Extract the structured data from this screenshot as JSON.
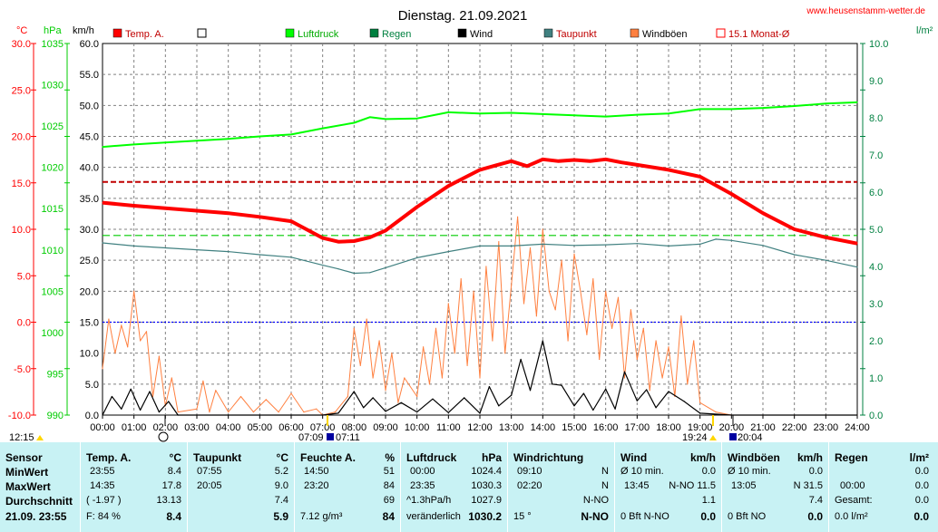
{
  "chart_data": {
    "type": "line",
    "title": "Dienstag. 21.09.2021",
    "website": "www.heusenstamm-wetter.de",
    "unit_labels": {
      "temp": "°C",
      "pressure": "hPa",
      "wind": "km/h",
      "rain": "l/m²"
    },
    "axes": {
      "temp_ticks": [
        "30.0",
        "25.0",
        "20.0",
        "15.0",
        "10.0",
        "5.0",
        "0.0",
        "-5.0",
        "-10.0"
      ],
      "pressure_ticks": [
        "1035",
        "1030",
        "1025",
        "1020",
        "1015",
        "1010",
        "1005",
        "1000",
        "995",
        "990"
      ],
      "wind_ticks": [
        "60.0",
        "55.0",
        "50.0",
        "45.0",
        "40.0",
        "35.0",
        "30.0",
        "25.0",
        "20.0",
        "15.0",
        "10.0",
        "5.0",
        "0.0"
      ],
      "rain_ticks": [
        "10.0",
        "9.0",
        "8.0",
        "7.0",
        "6.0",
        "5.0",
        "4.0",
        "3.0",
        "2.0",
        "1.0",
        "0.0"
      ],
      "x_ticks": [
        "00:00",
        "01:00",
        "02:00",
        "03:00",
        "04:00",
        "05:00",
        "06:00",
        "07:00",
        "08:00",
        "09:00",
        "10:00",
        "11:00",
        "12:00",
        "13:00",
        "14:00",
        "15:00",
        "16:00",
        "17:00",
        "18:00",
        "19:00",
        "20:00",
        "21:00",
        "22:00",
        "23:00",
        "24:00"
      ],
      "temp_range": [
        -10,
        30
      ],
      "wind_range": [
        0,
        60
      ],
      "rain_range": [
        0,
        10
      ],
      "grid": true
    },
    "legend": [
      {
        "name": "Temp. A.",
        "color": "#ff0000"
      },
      {
        "name": "",
        "color": "#ffffff"
      },
      {
        "name": "Luftdruck",
        "color": "#00ff00"
      },
      {
        "name": "Regen",
        "color": "#008040"
      },
      {
        "name": "Wind",
        "color": "#000000"
      },
      {
        "name": "Taupunkt",
        "color": "#408080"
      },
      {
        "name": "Windböen",
        "color": "#ff8040"
      },
      {
        "name": "15.1 Monat-Ø",
        "color": "#ff0000"
      }
    ],
    "monthly_avg_temp": 15.1,
    "dew_line_value": 29.0,
    "wind_blue_line_value": 15.0,
    "time_markers": [
      "12:15",
      "07:09",
      "07:11",
      "19:24",
      "20:04"
    ],
    "series": [
      {
        "name": "Temp. A.",
        "axis": "wind",
        "color": "#ff0000",
        "x": [
          0,
          1,
          2,
          3,
          4,
          5,
          6,
          7,
          7.5,
          8,
          8.5,
          9,
          10,
          11,
          12,
          12.5,
          13,
          13.5,
          14,
          14.5,
          15,
          15.5,
          16,
          16.5,
          17,
          18,
          19,
          20,
          21,
          22,
          23,
          24
        ],
        "y": [
          34.3,
          33.8,
          33.4,
          33.0,
          32.6,
          32.0,
          31.3,
          28.6,
          28.0,
          28.1,
          28.7,
          29.8,
          33.6,
          37.0,
          39.6,
          40.3,
          41.0,
          40.2,
          41.3,
          41.0,
          41.2,
          41.0,
          41.3,
          40.8,
          40.4,
          39.6,
          38.5,
          35.7,
          32.6,
          30.0,
          28.7,
          27.7
        ]
      },
      {
        "name": "Luftdruck",
        "axis": "wind",
        "color": "#00ff00",
        "x": [
          0,
          1,
          2,
          3,
          4,
          5,
          6,
          7,
          8,
          8.5,
          9,
          10,
          11,
          12,
          13,
          14,
          15,
          16,
          17,
          18,
          19,
          20,
          21,
          22,
          23,
          24
        ],
        "y": [
          43.3,
          43.7,
          44.0,
          44.3,
          44.6,
          45.0,
          45.3,
          46.3,
          47.2,
          48.1,
          47.8,
          47.9,
          48.9,
          48.7,
          48.8,
          48.6,
          48.4,
          48.2,
          48.5,
          48.7,
          49.4,
          49.4,
          49.6,
          49.9,
          50.3,
          50.5
        ]
      },
      {
        "name": "Taupunkt",
        "axis": "wind",
        "color": "#408080",
        "x": [
          0,
          1,
          2,
          3,
          4,
          5,
          6,
          7,
          7.5,
          8,
          8.5,
          9,
          10,
          11,
          12,
          13,
          14,
          15,
          16,
          17,
          18,
          19,
          19.5,
          20,
          21,
          22,
          23,
          24
        ],
        "y": [
          27.8,
          27.3,
          27.0,
          26.7,
          26.4,
          25.9,
          25.5,
          24.2,
          23.6,
          22.9,
          23.0,
          23.8,
          25.4,
          26.4,
          27.3,
          27.3,
          27.6,
          27.4,
          27.5,
          27.7,
          27.3,
          27.6,
          28.4,
          28.2,
          27.4,
          25.9,
          25.0,
          23.9
        ]
      },
      {
        "name": "Wind",
        "axis": "wind",
        "color": "#000000",
        "x": [
          0,
          0.3,
          0.6,
          0.9,
          1.2,
          1.5,
          1.8,
          2.1,
          2.4,
          3,
          4,
          5,
          6,
          7,
          7.5,
          8,
          8.3,
          8.6,
          9,
          9.5,
          10,
          10.5,
          11,
          11.5,
          12,
          12.3,
          12.6,
          13,
          13.3,
          13.6,
          14,
          14.3,
          14.6,
          15,
          15.3,
          15.6,
          16,
          16.3,
          16.6,
          17,
          17.3,
          17.6,
          18,
          18.5,
          19,
          20,
          21,
          22,
          23,
          24
        ],
        "y": [
          0,
          3.0,
          1.0,
          4.2,
          0.8,
          3.8,
          0.5,
          2.2,
          0,
          0,
          0,
          0,
          0,
          0,
          0.3,
          3.8,
          1.2,
          2.8,
          0.6,
          2.0,
          0.5,
          2.6,
          0.4,
          2.8,
          0.3,
          4.6,
          1.5,
          3.2,
          9.0,
          4.0,
          12.0,
          5.0,
          4.8,
          1.5,
          3.5,
          0.8,
          4.2,
          1.0,
          7.0,
          2.3,
          4.1,
          1.2,
          3.8,
          2.2,
          0.3,
          0,
          0,
          0,
          0,
          0
        ]
      },
      {
        "name": "Windböen",
        "axis": "wind",
        "color": "#ff8040",
        "x": [
          0,
          0.2,
          0.4,
          0.6,
          0.8,
          1,
          1.2,
          1.4,
          1.6,
          1.8,
          2,
          2.2,
          2.4,
          3,
          3.2,
          3.4,
          3.6,
          4,
          4.4,
          4.8,
          5.2,
          5.6,
          6,
          6.4,
          6.8,
          7,
          7.4,
          7.8,
          8,
          8.2,
          8.4,
          8.6,
          8.8,
          9,
          9.2,
          9.4,
          9.6,
          10,
          10.2,
          10.4,
          10.6,
          10.8,
          11,
          11.2,
          11.4,
          11.6,
          11.8,
          12,
          12.2,
          12.4,
          12.6,
          12.8,
          13,
          13.2,
          13.4,
          13.6,
          13.8,
          14,
          14.2,
          14.4,
          14.6,
          14.8,
          15,
          15.2,
          15.4,
          15.6,
          15.8,
          16,
          16.2,
          16.4,
          16.6,
          16.8,
          17,
          17.2,
          17.4,
          17.6,
          17.8,
          18,
          18.2,
          18.4,
          18.6,
          18.8,
          19,
          19.5,
          20,
          21,
          22,
          23,
          24
        ],
        "y": [
          7.5,
          15.5,
          10.0,
          14.5,
          11.0,
          20.0,
          12.0,
          13.5,
          3.0,
          9.5,
          1.5,
          6.0,
          0.5,
          1.0,
          5.5,
          0.5,
          4.0,
          0.5,
          3.0,
          0.5,
          2.5,
          0.5,
          3.5,
          0.5,
          1.0,
          0,
          0.5,
          3.0,
          14.0,
          8.0,
          15.5,
          6.0,
          12.0,
          4.0,
          10.0,
          2.0,
          6.0,
          3.0,
          11.0,
          5.0,
          14.0,
          6.0,
          18.0,
          10.0,
          22.0,
          8.0,
          20.0,
          6.0,
          24.0,
          12.0,
          28.0,
          10.0,
          21.0,
          32.0,
          18.0,
          27.0,
          16.0,
          30.0,
          20.0,
          17.0,
          25.0,
          12.0,
          26.0,
          20.0,
          13.0,
          22.0,
          9.0,
          20.0,
          14.0,
          19.0,
          6.0,
          17.0,
          9.0,
          14.0,
          4.0,
          12.0,
          6.0,
          11.0,
          3.0,
          16.0,
          5.0,
          12.0,
          2.0,
          0.5,
          0,
          0,
          0,
          0,
          0
        ]
      }
    ]
  },
  "footer": {
    "sensor": {
      "header": "Sensor",
      "rows": [
        "MinWert",
        "MaxWert",
        "Durchschnitt"
      ],
      "date": "21.09. 23:55"
    },
    "temp": {
      "header": "Temp. A.",
      "unit": "°C",
      "rows": [
        [
          "23:55",
          "8.4"
        ],
        [
          "14:35",
          "17.8"
        ],
        [
          "( -1.97 )",
          "13.13"
        ]
      ],
      "bottom_left": "F: 84 %",
      "bottom_value": "8.4"
    },
    "dew": {
      "header": "Taupunkt",
      "unit": "°C",
      "rows": [
        [
          "07:55",
          "5.2"
        ],
        [
          "20:05",
          "9.0"
        ],
        [
          "",
          "7.4"
        ]
      ],
      "bottom_value": "5.9"
    },
    "humidity": {
      "header": "Feuchte A.",
      "unit": "%",
      "rows": [
        [
          "14:50",
          "51"
        ],
        [
          "23:20",
          "84"
        ],
        [
          "",
          "69"
        ]
      ],
      "bottom_left": "7.12 g/m³",
      "bottom_value": "84"
    },
    "pressure": {
      "header": "Luftdruck",
      "unit": "hPa",
      "rows": [
        [
          "00:00",
          "1024.4"
        ],
        [
          "23:35",
          "1030.3"
        ],
        [
          "^1.3hPa/h",
          "1027.9"
        ]
      ],
      "bottom_left": "veränderlich",
      "bottom_value": "1030.2"
    },
    "winddir": {
      "header": "Windrichtung",
      "unit": "",
      "rows": [
        [
          "09:10",
          "N"
        ],
        [
          "02:20",
          "N"
        ],
        [
          "",
          "N-NO"
        ]
      ],
      "bottom_left": "15 °",
      "bottom_value": "N-NO"
    },
    "wind": {
      "header": "Wind",
      "unit": "km/h",
      "rows": [
        [
          "Ø 10 min.",
          "0.0"
        ],
        [
          "13:45",
          "N-NO 11.5"
        ],
        [
          "",
          "1.1"
        ]
      ],
      "bottom_left": "0 Bft N-NO",
      "bottom_value": "0.0"
    },
    "gusts": {
      "header": "Windböen",
      "unit": "km/h",
      "rows": [
        [
          "Ø 10 min.",
          "0.0"
        ],
        [
          "13:05",
          "N 31.5"
        ],
        [
          "",
          "7.4"
        ]
      ],
      "bottom_left": "0 Bft NO",
      "bottom_value": "0.0"
    },
    "rain": {
      "header": "Regen",
      "unit": "l/m²",
      "rows": [
        [
          "",
          "0.0"
        ],
        [
          "00:00",
          "0.0"
        ],
        [
          "Gesamt:",
          "0.0"
        ]
      ],
      "bottom_left": "0.0 l/m²",
      "bottom_value": "0.0"
    }
  }
}
